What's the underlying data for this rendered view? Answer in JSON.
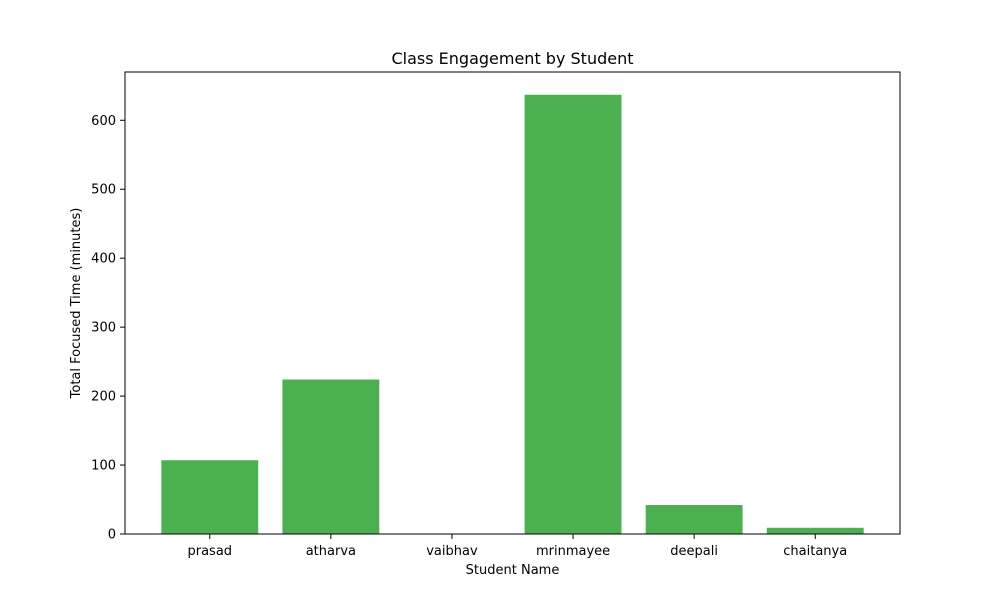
{
  "chart_data": {
    "type": "bar",
    "title": "Class Engagement by Student",
    "xlabel": "Student Name",
    "ylabel": "Total Focused Time (minutes)",
    "categories": [
      "prasad",
      "atharva",
      "vaibhav",
      "mrinmayee",
      "deepali",
      "chaitanya"
    ],
    "values": [
      107,
      224,
      0,
      637,
      42,
      9
    ],
    "ylim": [
      0,
      670
    ],
    "yticks": [
      0,
      100,
      200,
      300,
      400,
      500,
      600
    ],
    "bar_color": "#4caf50",
    "grid": false,
    "legend": "none"
  }
}
